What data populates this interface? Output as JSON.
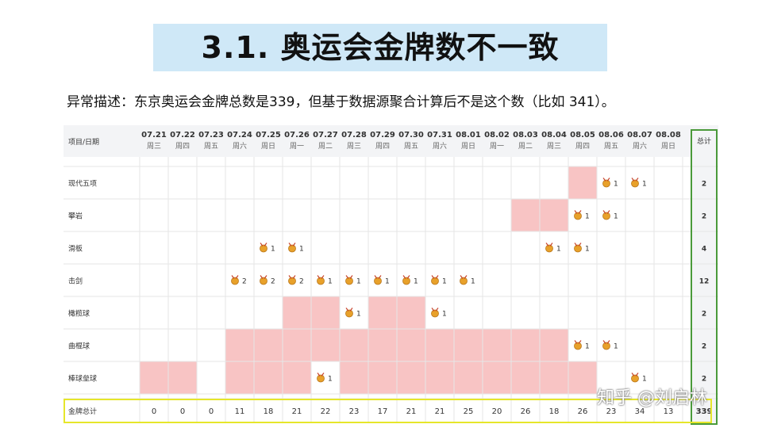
{
  "slide": {
    "title": "3.1. 奥运会金牌数不一致",
    "description": "异常描述：东京奥运会金牌总数是339，但基于数据源聚合计算后不是这个数（比如 341）。"
  },
  "table": {
    "corner_label": "项目/日期",
    "total_label": "总计",
    "dates": [
      {
        "date": "07.21",
        "weekday": "周三"
      },
      {
        "date": "07.22",
        "weekday": "周四"
      },
      {
        "date": "07.23",
        "weekday": "周五"
      },
      {
        "date": "07.24",
        "weekday": "周六"
      },
      {
        "date": "07.25",
        "weekday": "周日"
      },
      {
        "date": "07.26",
        "weekday": "周一"
      },
      {
        "date": "07.27",
        "weekday": "周二"
      },
      {
        "date": "07.28",
        "weekday": "周三"
      },
      {
        "date": "07.29",
        "weekday": "周四"
      },
      {
        "date": "07.30",
        "weekday": "周五"
      },
      {
        "date": "07.31",
        "weekday": "周六"
      },
      {
        "date": "08.01",
        "weekday": "周日"
      },
      {
        "date": "08.02",
        "weekday": "周一"
      },
      {
        "date": "08.03",
        "weekday": "周二"
      },
      {
        "date": "08.04",
        "weekday": "周三"
      },
      {
        "date": "08.05",
        "weekday": "周四"
      },
      {
        "date": "08.06",
        "weekday": "周五"
      },
      {
        "date": "08.07",
        "weekday": "周六"
      },
      {
        "date": "08.08",
        "weekday": "周日"
      }
    ],
    "rows": [
      {
        "name": "现代五项",
        "total": "2",
        "pink": [
          15
        ],
        "medals": {
          "16": "1",
          "17": "1"
        }
      },
      {
        "name": "攀岩",
        "total": "2",
        "pink": [
          13,
          14
        ],
        "medals": {
          "15": "1",
          "16": "1"
        }
      },
      {
        "name": "滑板",
        "total": "4",
        "pink": [],
        "medals": {
          "4": "1",
          "5": "1",
          "14": "1",
          "15": "1"
        }
      },
      {
        "name": "击剑",
        "total": "12",
        "pink": [],
        "medals": {
          "3": "2",
          "4": "2",
          "5": "2",
          "6": "1",
          "7": "1",
          "8": "1",
          "9": "1",
          "10": "1",
          "11": "1"
        }
      },
      {
        "name": "橄榄球",
        "total": "2",
        "pink": [
          5,
          6,
          8,
          9
        ],
        "medals": {
          "7": "1",
          "10": "1"
        }
      },
      {
        "name": "曲棍球",
        "total": "2",
        "pink": [
          3,
          4,
          5,
          6,
          7,
          8,
          9,
          10,
          11,
          12,
          13,
          14
        ],
        "medals": {
          "15": "1",
          "16": "1"
        }
      },
      {
        "name": "棒球垒球",
        "total": "2",
        "pink": [
          0,
          1,
          3,
          4,
          5,
          7,
          8,
          9,
          10,
          11,
          12,
          13,
          14,
          15
        ],
        "medals": {
          "6": "1",
          "17": "1"
        }
      }
    ],
    "footer": {
      "label": "金牌总计",
      "values": [
        "0",
        "0",
        "0",
        "11",
        "18",
        "21",
        "22",
        "23",
        "17",
        "21",
        "21",
        "25",
        "20",
        "26",
        "18",
        "26",
        "23",
        "34",
        "13"
      ],
      "total": "339"
    },
    "colors": {
      "pink": "#f8c4c4",
      "highlight_green": "#4a9a3a",
      "highlight_yellow": "#e6e62a",
      "grid": "#e6e6e6"
    }
  },
  "watermark": "知乎 @刘启林"
}
